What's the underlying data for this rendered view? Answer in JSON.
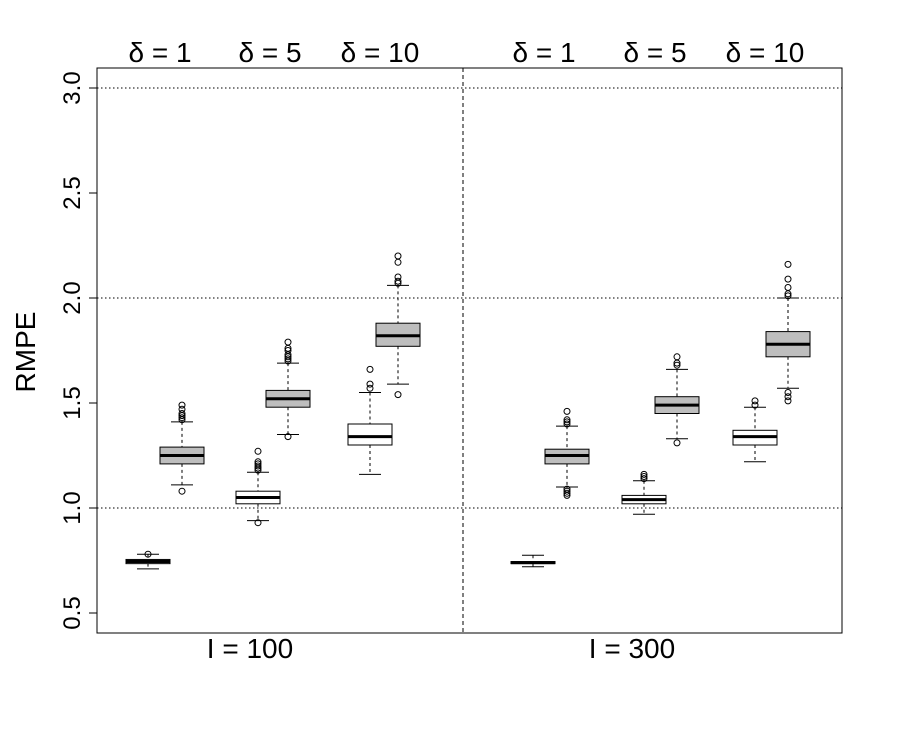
{
  "chart_data": {
    "type": "boxplot",
    "ylabel": "RMPE",
    "ylim": [
      0.4,
      3.1
    ],
    "yticks": [
      "0.5",
      "1.0",
      "1.5",
      "2.0",
      "2.5",
      "3.0"
    ],
    "hlines": [
      1.0,
      2.0,
      3.0
    ],
    "grid": "dotted horizontal lines at 1.0, 2.0, 3.0",
    "panels": [
      {
        "label": "I = 100",
        "groups": [
          {
            "header": "δ = 1",
            "boxes": [
              {
                "fill": "white",
                "whisker_low": 0.71,
                "q1": 0.735,
                "median": 0.745,
                "q3": 0.755,
                "whisker_high": 0.78,
                "outliers": [
                  0.78
                ]
              },
              null
            ]
          },
          {
            "header": "δ = 5",
            "boxes": [
              {
                "fill": "white",
                "whisker_low": 0.94,
                "q1": 1.02,
                "median": 1.05,
                "q3": 1.08,
                "whisker_high": 1.17,
                "outliers": [
                  0.93,
                  1.18,
                  1.19,
                  1.2,
                  1.21,
                  1.22,
                  1.27
                ]
              },
              {
                "fill": "gray",
                "whisker_low": 1.35,
                "q1": 1.48,
                "median": 1.52,
                "q3": 1.56,
                "whisker_high": 1.69,
                "outliers": [
                  1.34,
                  1.7,
                  1.71,
                  1.72,
                  1.73,
                  1.75,
                  1.76,
                  1.79
                ]
              }
            ]
          },
          {
            "header": "δ = 10",
            "boxes": [
              {
                "fill": "white",
                "whisker_low": 1.16,
                "q1": 1.3,
                "median": 1.34,
                "q3": 1.4,
                "whisker_high": 1.55,
                "outliers": [
                  1.57,
                  1.59,
                  1.66
                ]
              },
              {
                "fill": "gray",
                "whisker_low": 1.59,
                "q1": 1.77,
                "median": 1.82,
                "q3": 1.88,
                "whisker_high": 2.06,
                "outliers": [
                  1.54,
                  2.07,
                  2.08,
                  2.1,
                  2.17,
                  2.2
                ]
              }
            ]
          }
        ],
        "extra_box": {
          "fill": "gray",
          "whisker_low": 1.11,
          "q1": 1.21,
          "median": 1.25,
          "q3": 1.29,
          "whisker_high": 1.41,
          "outliers": [
            1.08,
            1.42,
            1.43,
            1.44,
            1.45,
            1.47,
            1.49
          ]
        }
      },
      {
        "label": "I = 300",
        "groups": [
          {
            "header": "δ = 1",
            "boxes": [
              {
                "fill": "white",
                "whisker_low": 0.72,
                "q1": 0.735,
                "median": 0.74,
                "q3": 0.745,
                "whisker_high": 0.775,
                "outliers": []
              },
              null
            ]
          },
          {
            "header": "δ = 5",
            "boxes": [
              {
                "fill": "white",
                "whisker_low": 0.97,
                "q1": 1.02,
                "median": 1.04,
                "q3": 1.06,
                "whisker_high": 1.13,
                "outliers": [
                  1.14,
                  1.15,
                  1.16
                ]
              },
              {
                "fill": "gray",
                "whisker_low": 1.33,
                "q1": 1.45,
                "median": 1.49,
                "q3": 1.53,
                "whisker_high": 1.66,
                "outliers": [
                  1.31,
                  1.68,
                  1.69,
                  1.72
                ]
              }
            ]
          },
          {
            "header": "δ = 10",
            "boxes": [
              {
                "fill": "white",
                "whisker_low": 1.22,
                "q1": 1.3,
                "median": 1.34,
                "q3": 1.37,
                "whisker_high": 1.48,
                "outliers": [
                  1.49,
                  1.51
                ]
              },
              {
                "fill": "gray",
                "whisker_low": 1.57,
                "q1": 1.72,
                "median": 1.78,
                "q3": 1.84,
                "whisker_high": 2.0,
                "outliers": [
                  1.51,
                  1.53,
                  1.55,
                  2.01,
                  2.02,
                  2.05,
                  2.09,
                  2.16
                ]
              }
            ]
          }
        ],
        "extra_box": {
          "fill": "gray",
          "whisker_low": 1.1,
          "q1": 1.21,
          "median": 1.25,
          "q3": 1.28,
          "whisker_high": 1.39,
          "outliers": [
            1.06,
            1.07,
            1.08,
            1.09,
            1.4,
            1.41,
            1.42,
            1.46
          ]
        }
      }
    ],
    "colors": {
      "white_box": "#ffffff",
      "gray_box": "#bebebe",
      "line": "#000000"
    }
  }
}
